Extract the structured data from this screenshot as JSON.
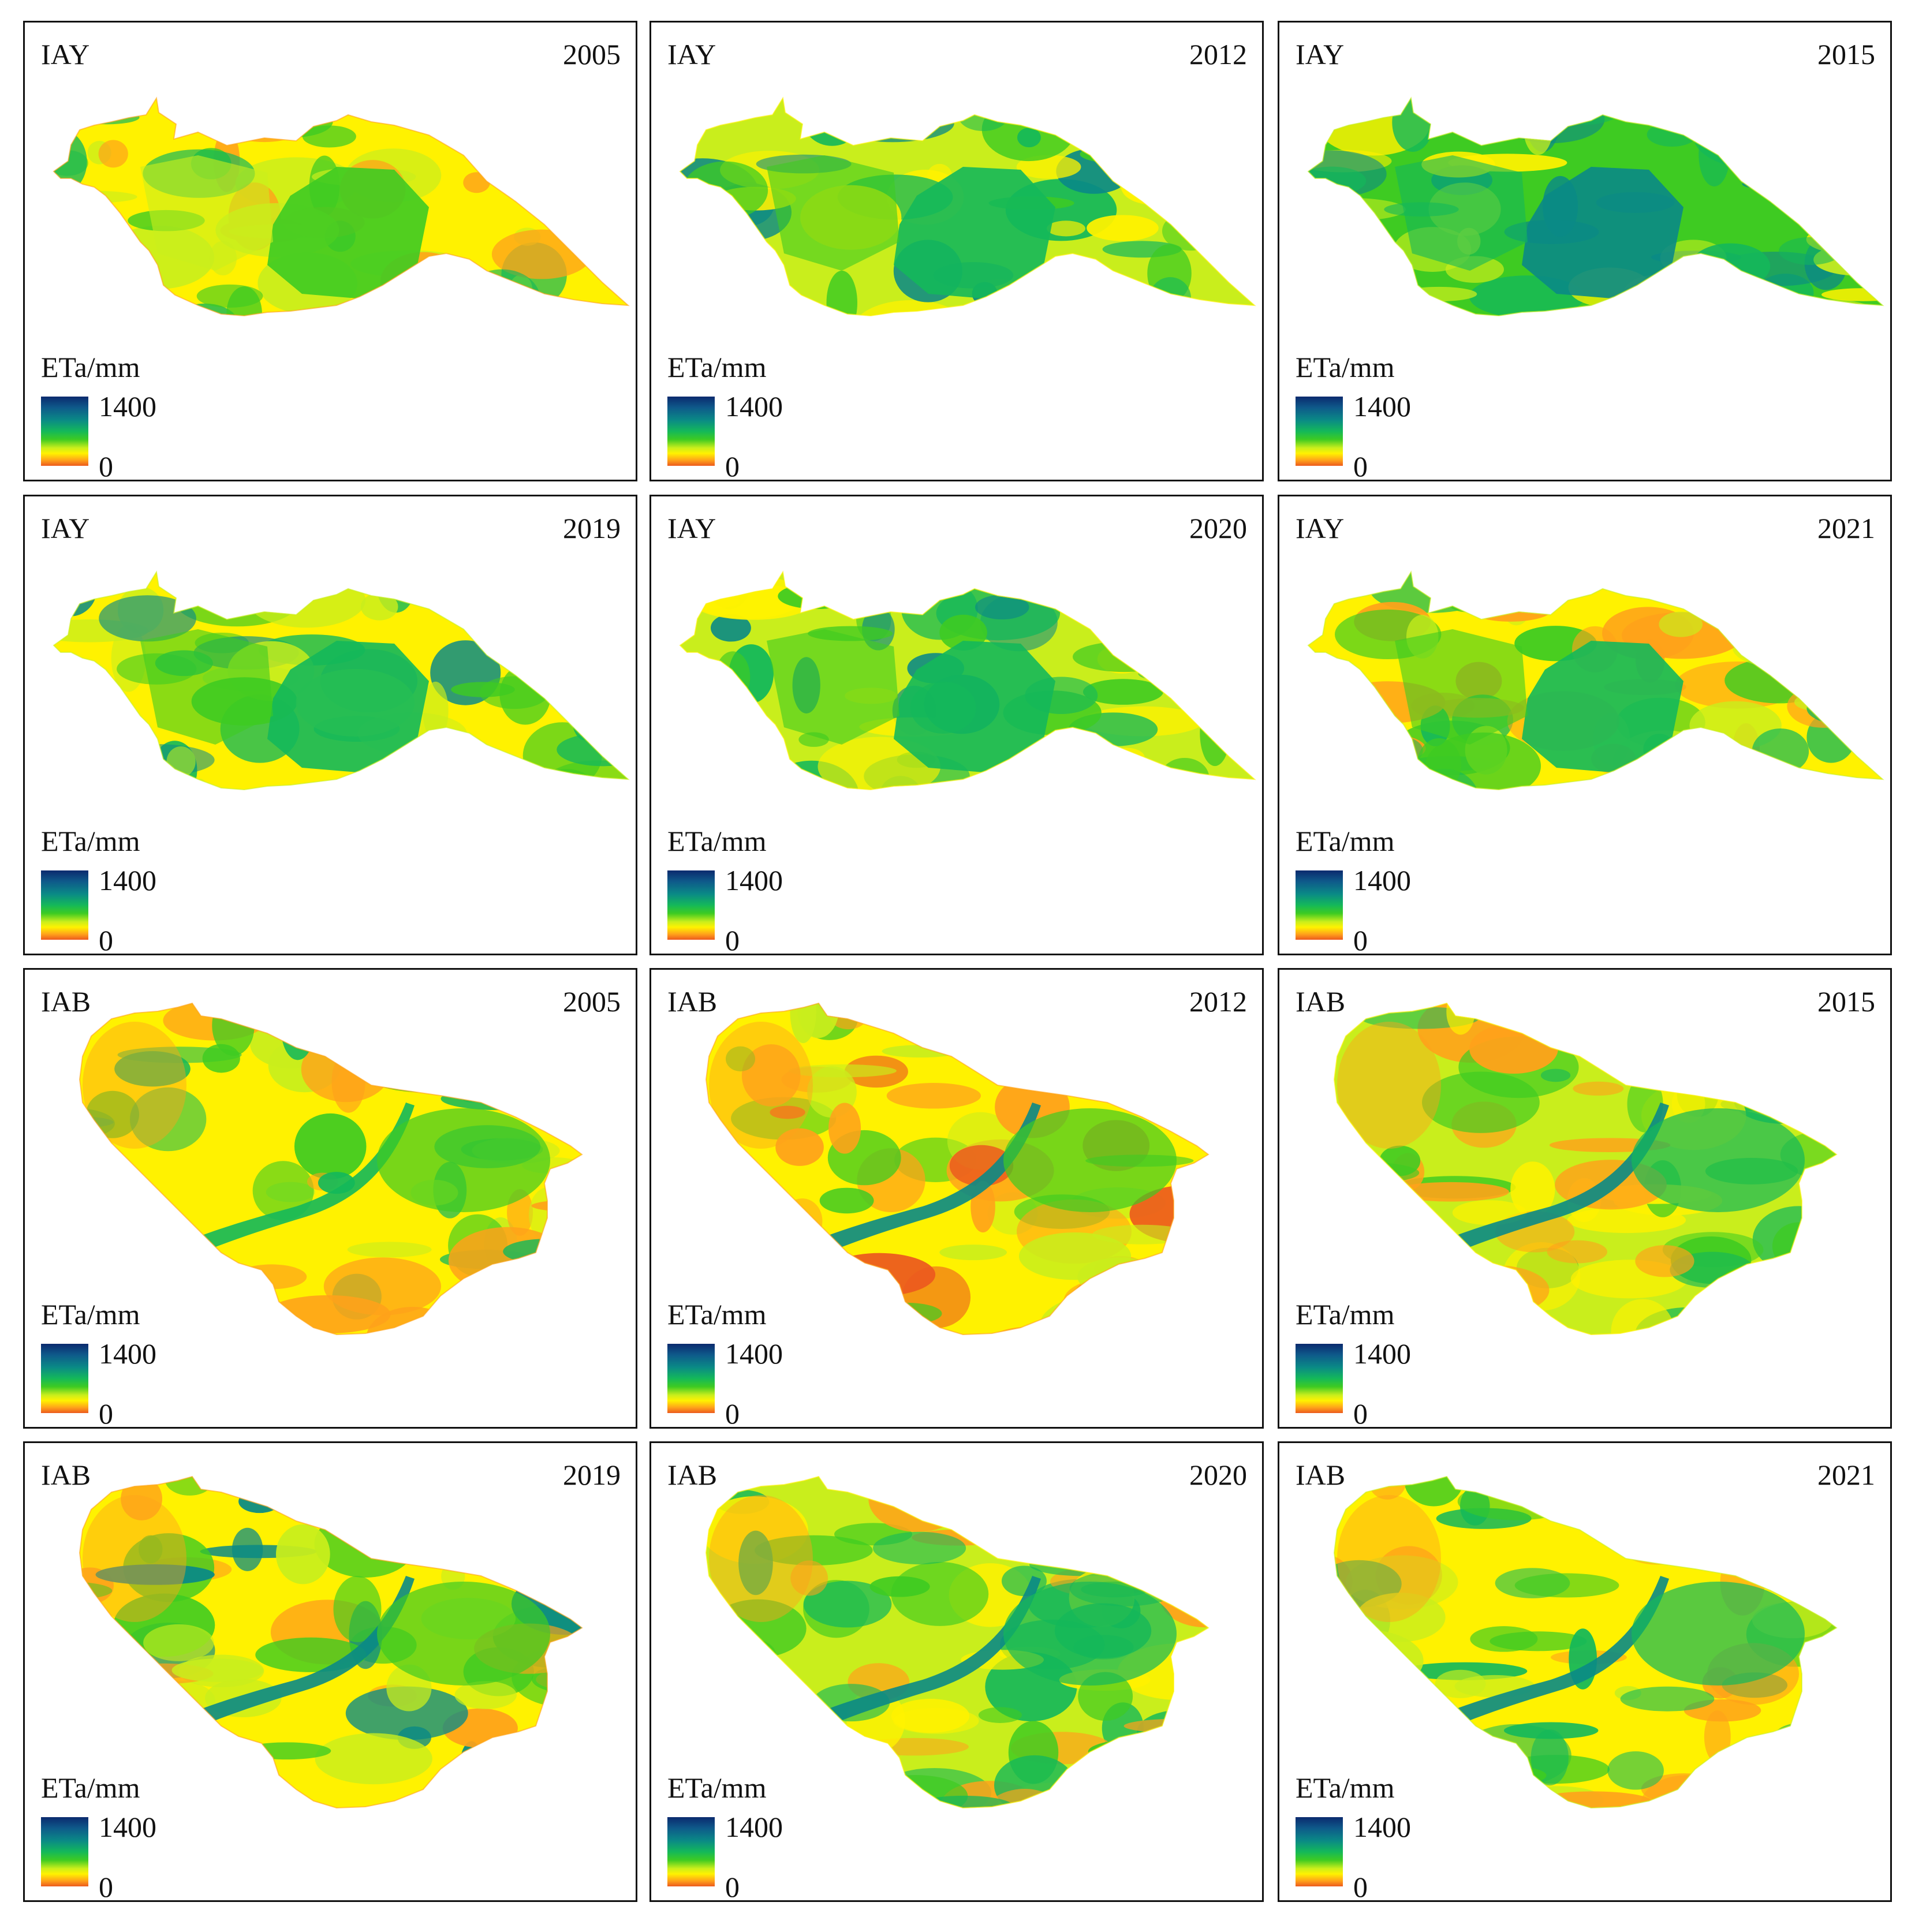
{
  "legend": {
    "title": "ETa/mm",
    "max_label": "1400",
    "min_label": "0"
  },
  "colors": {
    "low": "#ec5a1e",
    "low_mid": "#ffa21a",
    "mid_low": "#fff200",
    "mid": "#c9ee1c",
    "mid_high": "#3ecb22",
    "high": "#14b85a",
    "higher": "#0a8a86",
    "highest": "#0b2a6e"
  },
  "panels": [
    {
      "region": "IAY",
      "year": "2005"
    },
    {
      "region": "IAY",
      "year": "2012"
    },
    {
      "region": "IAY",
      "year": "2015"
    },
    {
      "region": "IAY",
      "year": "2019"
    },
    {
      "region": "IAY",
      "year": "2020"
    },
    {
      "region": "IAY",
      "year": "2021"
    },
    {
      "region": "IAB",
      "year": "2005"
    },
    {
      "region": "IAB",
      "year": "2012"
    },
    {
      "region": "IAB",
      "year": "2015"
    },
    {
      "region": "IAB",
      "year": "2019"
    },
    {
      "region": "IAB",
      "year": "2020"
    },
    {
      "region": "IAB",
      "year": "2021"
    }
  ]
}
